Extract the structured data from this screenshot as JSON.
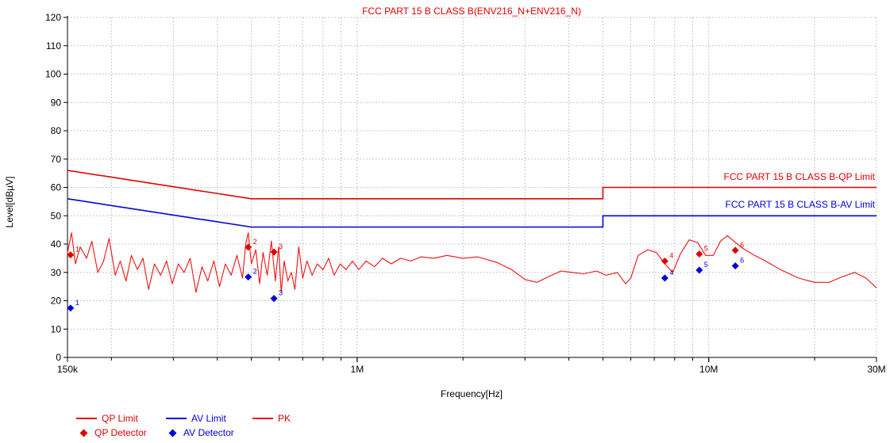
{
  "colors": {
    "qp": "#e00000",
    "av": "#0000dd",
    "pk": "#ee1111",
    "grid": "#c8c8c8",
    "axis": "#000000"
  },
  "chart_data": {
    "type": "line",
    "title": "FCC PART 15 B CLASS B(ENV216_N+ENV216_N)",
    "xlabel": "Frequency[Hz]",
    "ylabel": "Level[dBµV]",
    "x_scale": "log",
    "xlim": [
      150000,
      30000000
    ],
    "ylim": [
      0,
      120
    ],
    "x_ticks": [
      {
        "value": 150000,
        "label": "150k"
      },
      {
        "value": 1000000,
        "label": "1M"
      },
      {
        "value": 10000000,
        "label": "10M"
      },
      {
        "value": 30000000,
        "label": "30M"
      }
    ],
    "y_ticks": [
      0,
      10,
      20,
      30,
      40,
      50,
      60,
      70,
      80,
      90,
      100,
      110,
      120
    ],
    "grid": true,
    "limit_labels": {
      "qp": "FCC PART 15 B CLASS B-QP Limit",
      "av": "FCC PART 15 B CLASS B-AV Limit"
    },
    "series": [
      {
        "name": "QP Limit",
        "kind": "line",
        "points": [
          [
            150000,
            66
          ],
          [
            500000,
            56
          ],
          [
            5000000,
            56
          ],
          [
            5000000,
            60
          ],
          [
            30000000,
            60
          ]
        ]
      },
      {
        "name": "AV Limit",
        "kind": "line",
        "points": [
          [
            150000,
            56
          ],
          [
            500000,
            46
          ],
          [
            5000000,
            46
          ],
          [
            5000000,
            50
          ],
          [
            30000000,
            50
          ]
        ]
      },
      {
        "name": "PK",
        "kind": "line",
        "points": [
          [
            150000,
            37
          ],
          [
            154000,
            44
          ],
          [
            158000,
            33
          ],
          [
            163000,
            39
          ],
          [
            170000,
            35
          ],
          [
            176000,
            41
          ],
          [
            183000,
            30
          ],
          [
            190000,
            34
          ],
          [
            197000,
            42
          ],
          [
            205000,
            29
          ],
          [
            212000,
            34
          ],
          [
            220000,
            27
          ],
          [
            228000,
            36
          ],
          [
            237000,
            31
          ],
          [
            246000,
            35
          ],
          [
            255000,
            24
          ],
          [
            265000,
            33
          ],
          [
            276000,
            29
          ],
          [
            287000,
            34
          ],
          [
            298000,
            26
          ],
          [
            310000,
            33
          ],
          [
            322000,
            30
          ],
          [
            335000,
            35
          ],
          [
            348000,
            23
          ],
          [
            362000,
            32
          ],
          [
            376000,
            27
          ],
          [
            391000,
            34
          ],
          [
            406000,
            25
          ],
          [
            422000,
            33
          ],
          [
            438000,
            29
          ],
          [
            455000,
            36
          ],
          [
            472000,
            28
          ],
          [
            482000,
            40
          ],
          [
            490000,
            44
          ],
          [
            500000,
            33
          ],
          [
            515000,
            38
          ],
          [
            528000,
            26
          ],
          [
            540000,
            37
          ],
          [
            555000,
            29
          ],
          [
            570000,
            41
          ],
          [
            585000,
            27
          ],
          [
            598000,
            39
          ],
          [
            608000,
            23
          ],
          [
            620000,
            34
          ],
          [
            635000,
            27
          ],
          [
            650000,
            30
          ],
          [
            665000,
            24
          ],
          [
            682000,
            39
          ],
          [
            700000,
            28
          ],
          [
            720000,
            34
          ],
          [
            745000,
            29
          ],
          [
            770000,
            33
          ],
          [
            800000,
            31
          ],
          [
            830000,
            35
          ],
          [
            860000,
            29
          ],
          [
            895000,
            33
          ],
          [
            930000,
            31
          ],
          [
            970000,
            34
          ],
          [
            1010000,
            31
          ],
          [
            1060000,
            34
          ],
          [
            1120000,
            32
          ],
          [
            1180000,
            35
          ],
          [
            1250000,
            33
          ],
          [
            1330000,
            35
          ],
          [
            1420000,
            34
          ],
          [
            1520000,
            35.5
          ],
          [
            1650000,
            35
          ],
          [
            1800000,
            36
          ],
          [
            2000000,
            35
          ],
          [
            2200000,
            35.5
          ],
          [
            2500000,
            33.5
          ],
          [
            2750000,
            31
          ],
          [
            3000000,
            27.5
          ],
          [
            3250000,
            26.5
          ],
          [
            3500000,
            28.5
          ],
          [
            3800000,
            30.5
          ],
          [
            4100000,
            30
          ],
          [
            4400000,
            29.5
          ],
          [
            4800000,
            30.5
          ],
          [
            5100000,
            29
          ],
          [
            5500000,
            30
          ],
          [
            5800000,
            26
          ],
          [
            6000000,
            28
          ],
          [
            6300000,
            36
          ],
          [
            6700000,
            38
          ],
          [
            7100000,
            37
          ],
          [
            7500000,
            33
          ],
          [
            7900000,
            30
          ],
          [
            8300000,
            36.5
          ],
          [
            8800000,
            41.5
          ],
          [
            9300000,
            40.5
          ],
          [
            9800000,
            36
          ],
          [
            10300000,
            36
          ],
          [
            10800000,
            41
          ],
          [
            11300000,
            43
          ],
          [
            11800000,
            41
          ],
          [
            12500000,
            38.5
          ],
          [
            13500000,
            36
          ],
          [
            14500000,
            34
          ],
          [
            16000000,
            31
          ],
          [
            18000000,
            28
          ],
          [
            20000000,
            26.5
          ],
          [
            22000000,
            26.5
          ],
          [
            24000000,
            28.5
          ],
          [
            26000000,
            30
          ],
          [
            28000000,
            28
          ],
          [
            30000000,
            24.5
          ]
        ]
      }
    ],
    "markers": [
      {
        "name": "QP Detector",
        "points": [
          {
            "label": "1",
            "x": 153000,
            "y": 36.2
          },
          {
            "label": "2",
            "x": 490000,
            "y": 38.9
          },
          {
            "label": "3",
            "x": 580000,
            "y": 37.2
          },
          {
            "label": "4",
            "x": 7500000,
            "y": 34
          },
          {
            "label": "5",
            "x": 9400000,
            "y": 36.5
          },
          {
            "label": "6",
            "x": 11900000,
            "y": 37.8
          }
        ]
      },
      {
        "name": "AV Detector",
        "points": [
          {
            "label": "1",
            "x": 153000,
            "y": 17.4
          },
          {
            "label": "2",
            "x": 490000,
            "y": 28.4
          },
          {
            "label": "3",
            "x": 580000,
            "y": 20.8
          },
          {
            "label": "4",
            "x": 7500000,
            "y": 28
          },
          {
            "label": "5",
            "x": 9400000,
            "y": 30.8
          },
          {
            "label": "6",
            "x": 11900000,
            "y": 32.3
          }
        ]
      }
    ]
  },
  "legend": {
    "qp_limit": "QP Limit",
    "av_limit": "AV Limit",
    "pk": "PK",
    "qp_detector": "QP Detector",
    "av_detector": "AV Detector"
  }
}
